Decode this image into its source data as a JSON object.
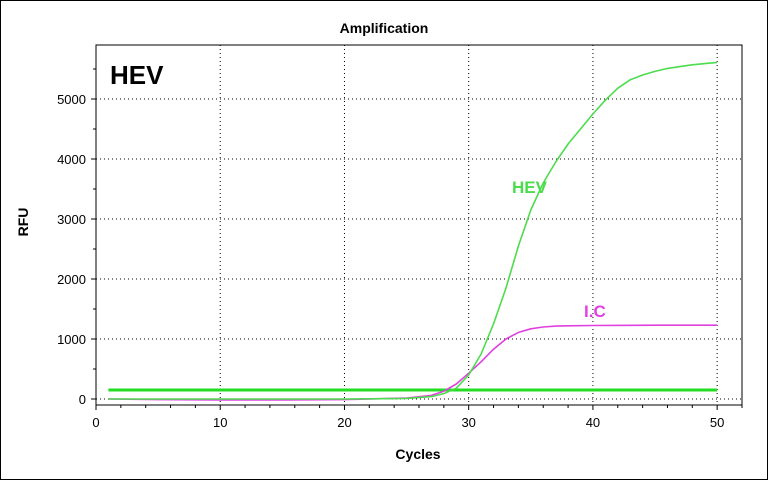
{
  "chart_data": {
    "type": "line",
    "title": "Amplification",
    "xlabel": "Cycles",
    "ylabel": "RFU",
    "panel_label": "HEV",
    "xlim": [
      0,
      52
    ],
    "ylim": [
      -100,
      5900
    ],
    "xticks": [
      0,
      10,
      20,
      30,
      40,
      50
    ],
    "yticks": [
      0,
      1000,
      2000,
      3000,
      4000,
      5000
    ],
    "grid": true,
    "series": [
      {
        "name": "HEV",
        "color": "#4ddc4d",
        "x": [
          1,
          5,
          10,
          15,
          20,
          25,
          27,
          28,
          29,
          30,
          31,
          32,
          33,
          34,
          35,
          36,
          37,
          38,
          39,
          40,
          41,
          42,
          43,
          44,
          45,
          46,
          47,
          48,
          49,
          50
        ],
        "y": [
          0,
          0,
          0,
          0,
          0,
          10,
          40,
          90,
          180,
          400,
          750,
          1250,
          1850,
          2550,
          3150,
          3600,
          3950,
          4250,
          4500,
          4750,
          4980,
          5180,
          5320,
          5400,
          5460,
          5510,
          5540,
          5570,
          5590,
          5610
        ]
      },
      {
        "name": "I.C",
        "color": "#e040e0",
        "x": [
          1,
          5,
          10,
          15,
          20,
          25,
          27,
          28,
          29,
          30,
          31,
          32,
          33,
          34,
          35,
          36,
          37,
          38,
          40,
          45,
          50
        ],
        "y": [
          0,
          -10,
          -15,
          -15,
          -10,
          15,
          60,
          130,
          250,
          430,
          620,
          830,
          1000,
          1110,
          1170,
          1200,
          1215,
          1220,
          1225,
          1230,
          1230
        ]
      },
      {
        "name": "",
        "color": "#22dd22",
        "x": [
          1,
          50
        ],
        "y": [
          150,
          150
        ]
      }
    ]
  }
}
